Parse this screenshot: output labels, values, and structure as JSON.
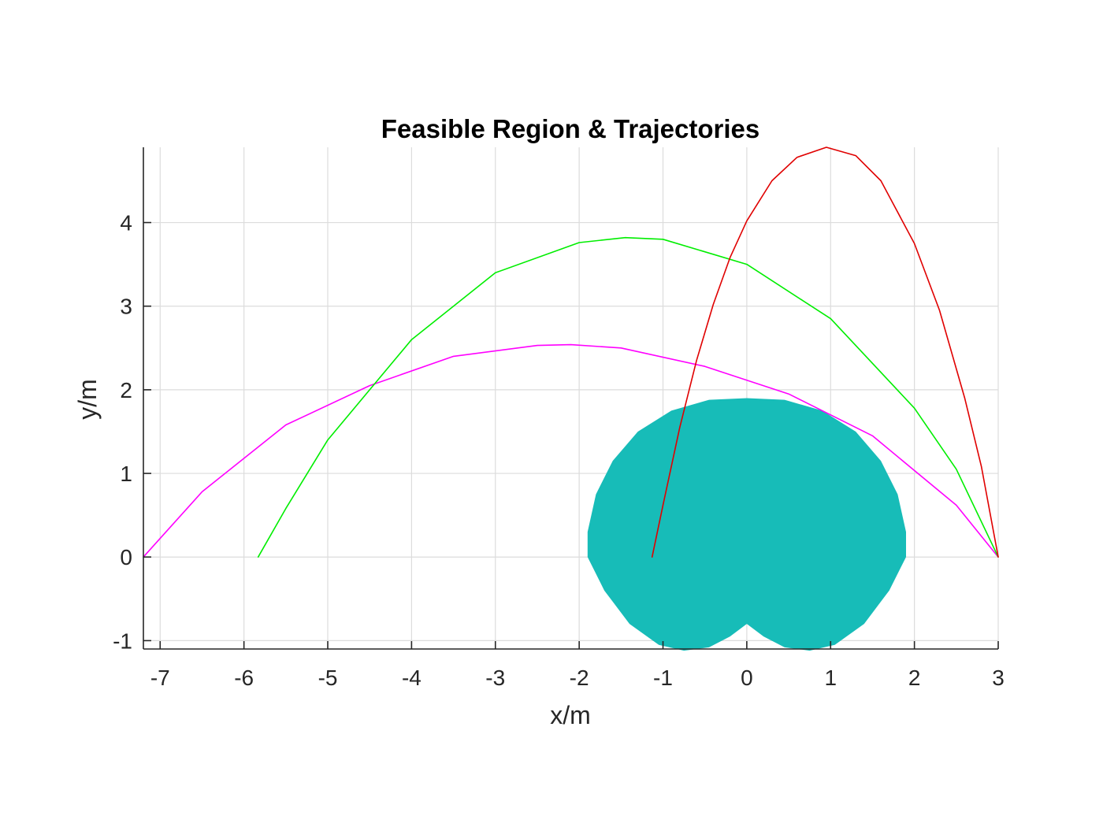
{
  "chart_data": {
    "type": "line",
    "title": "Feasible Region & Trajectories",
    "xlabel": "x/m",
    "ylabel": "y/m",
    "xlim": [
      -7.2,
      3
    ],
    "ylim": [
      -1.1,
      4.9
    ],
    "xticks": [
      -7,
      -6,
      -5,
      -4,
      -3,
      -2,
      -1,
      0,
      1,
      2,
      3
    ],
    "xtick_labels": [
      "-7",
      "-6",
      "-5",
      "-4",
      "-3",
      "-2",
      "-1",
      "0",
      "1",
      "2",
      "3"
    ],
    "yticks": [
      -1,
      0,
      1,
      2,
      3,
      4
    ],
    "ytick_labels": [
      "-1",
      "0",
      "1",
      "2",
      "3",
      "4"
    ],
    "grid": true,
    "feasible_region": {
      "color": "#17bcb8",
      "description_shape": "cardioid-like lobes",
      "boundary": [
        [
          0.0,
          -0.8
        ],
        [
          -0.2,
          -0.95
        ],
        [
          -0.45,
          -1.08
        ],
        [
          -0.75,
          -1.12
        ],
        [
          -1.05,
          -1.05
        ],
        [
          -1.4,
          -0.8
        ],
        [
          -1.7,
          -0.4
        ],
        [
          -1.9,
          0.0
        ],
        [
          -1.9,
          0.3
        ],
        [
          -1.8,
          0.75
        ],
        [
          -1.6,
          1.15
        ],
        [
          -1.3,
          1.5
        ],
        [
          -0.9,
          1.75
        ],
        [
          -0.45,
          1.88
        ],
        [
          0.0,
          1.9
        ],
        [
          0.45,
          1.88
        ],
        [
          0.9,
          1.75
        ],
        [
          1.3,
          1.5
        ],
        [
          1.6,
          1.15
        ],
        [
          1.8,
          0.75
        ],
        [
          1.9,
          0.3
        ],
        [
          1.9,
          0.0
        ],
        [
          1.7,
          -0.4
        ],
        [
          1.4,
          -0.8
        ],
        [
          1.05,
          -1.05
        ],
        [
          0.75,
          -1.12
        ],
        [
          0.45,
          -1.08
        ],
        [
          0.2,
          -0.95
        ],
        [
          0.0,
          -0.8
        ]
      ]
    },
    "series": [
      {
        "color": "#ff00ff",
        "x": [
          -7.2,
          -6.5,
          -5.5,
          -4.5,
          -3.5,
          -2.5,
          -2.1,
          -1.5,
          -0.5,
          0.5,
          1.5,
          2.5,
          3.0
        ],
        "y": [
          0.0,
          0.78,
          1.58,
          2.05,
          2.4,
          2.53,
          2.54,
          2.5,
          2.28,
          1.95,
          1.45,
          0.62,
          0.0
        ]
      },
      {
        "color": "#00ee00",
        "x": [
          -5.83,
          -5.5,
          -5.0,
          -4.5,
          -4.0,
          -3.0,
          -2.0,
          -1.45,
          -1.0,
          0.0,
          1.0,
          2.0,
          2.5,
          3.0
        ],
        "y": [
          0.0,
          0.58,
          1.4,
          2.0,
          2.6,
          3.4,
          3.76,
          3.82,
          3.8,
          3.5,
          2.85,
          1.78,
          1.05,
          0.0
        ]
      },
      {
        "color": "#e00000",
        "x": [
          -1.13,
          -1.0,
          -0.8,
          -0.6,
          -0.4,
          -0.2,
          0.0,
          0.3,
          0.6,
          0.95,
          1.3,
          1.6,
          2.0,
          2.3,
          2.6,
          2.8,
          3.0
        ],
        "y": [
          0.0,
          0.62,
          1.55,
          2.35,
          3.02,
          3.58,
          4.02,
          4.5,
          4.78,
          4.9,
          4.8,
          4.5,
          3.75,
          2.95,
          1.9,
          1.08,
          0.0
        ]
      }
    ]
  }
}
